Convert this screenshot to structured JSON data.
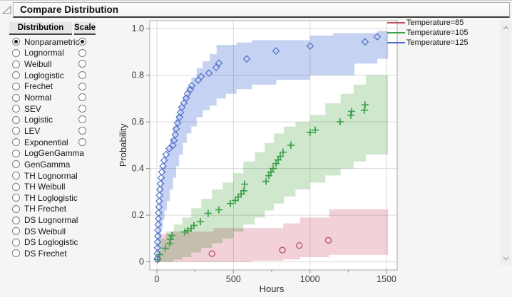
{
  "panel": {
    "title": "Compare Distribution"
  },
  "icons": {
    "disclosure": "open-triangle",
    "scroll_up": "chevron-up",
    "scroll_down": "chevron-down"
  },
  "distribution_table": {
    "headers": [
      "Distribution",
      "Scale"
    ],
    "rows": [
      {
        "label": "Nonparametric",
        "dist_selected": true,
        "has_scale": true,
        "scale_selected": true
      },
      {
        "label": "Lognormal",
        "dist_selected": false,
        "has_scale": true,
        "scale_selected": false
      },
      {
        "label": "Weibull",
        "dist_selected": false,
        "has_scale": true,
        "scale_selected": false
      },
      {
        "label": "Loglogistic",
        "dist_selected": false,
        "has_scale": true,
        "scale_selected": false
      },
      {
        "label": "Frechet",
        "dist_selected": false,
        "has_scale": true,
        "scale_selected": false
      },
      {
        "label": "Normal",
        "dist_selected": false,
        "has_scale": true,
        "scale_selected": false
      },
      {
        "label": "SEV",
        "dist_selected": false,
        "has_scale": true,
        "scale_selected": false
      },
      {
        "label": "Logistic",
        "dist_selected": false,
        "has_scale": true,
        "scale_selected": false
      },
      {
        "label": "LEV",
        "dist_selected": false,
        "has_scale": true,
        "scale_selected": false
      },
      {
        "label": "Exponential",
        "dist_selected": false,
        "has_scale": true,
        "scale_selected": false
      },
      {
        "label": "LogGenGamma",
        "dist_selected": false,
        "has_scale": false,
        "scale_selected": false
      },
      {
        "label": "GenGamma",
        "dist_selected": false,
        "has_scale": false,
        "scale_selected": false
      },
      {
        "label": "TH Lognormal",
        "dist_selected": false,
        "has_scale": false,
        "scale_selected": false
      },
      {
        "label": "TH Weibull",
        "dist_selected": false,
        "has_scale": false,
        "scale_selected": false
      },
      {
        "label": "TH Loglogistic",
        "dist_selected": false,
        "has_scale": false,
        "scale_selected": false
      },
      {
        "label": "TH Frechet",
        "dist_selected": false,
        "has_scale": false,
        "scale_selected": false
      },
      {
        "label": "DS Lognormal",
        "dist_selected": false,
        "has_scale": false,
        "scale_selected": false
      },
      {
        "label": "DS Weibull",
        "dist_selected": false,
        "has_scale": false,
        "scale_selected": false
      },
      {
        "label": "DS Loglogistic",
        "dist_selected": false,
        "has_scale": false,
        "scale_selected": false
      },
      {
        "label": "DS Frechet",
        "dist_selected": false,
        "has_scale": false,
        "scale_selected": false
      }
    ]
  },
  "legend": {
    "items": [
      {
        "label": "Temperature=85",
        "color": "#c05568"
      },
      {
        "label": "Temperature=105",
        "color": "#3da04b"
      },
      {
        "label": "Temperature=125",
        "color": "#4f6fc8"
      }
    ]
  },
  "chart_data": {
    "type": "scatter",
    "title": "",
    "xlabel": "Hours",
    "ylabel": "Probability",
    "xlim": [
      0,
      1570
    ],
    "ylim": [
      0,
      1.04
    ],
    "grid": true,
    "legend_position": "right-outside",
    "x_ticks": [
      {
        "value": 0,
        "label": "0"
      },
      {
        "value": 500,
        "label": "500"
      },
      {
        "value": 1000,
        "label": "1000"
      },
      {
        "value": 1500,
        "label": "1500"
      }
    ],
    "x_minor_ticks": [
      250,
      750,
      1250
    ],
    "y_ticks": [
      {
        "value": 1.0,
        "label": "1.0"
      },
      {
        "value": 0.8,
        "label": "0.8"
      },
      {
        "value": 0.6,
        "label": "0.6"
      },
      {
        "value": 0.4,
        "label": "0.4"
      },
      {
        "value": 0.2,
        "label": "0.2"
      },
      {
        "value": 0,
        "label": "0"
      }
    ],
    "series": [
      {
        "name": "Temperature=85",
        "marker": "circle",
        "color": "#c05568",
        "band_color": "#f2d2d8",
        "points": [
          [
            5,
            0.012
          ],
          [
            360,
            0.035
          ],
          [
            820,
            0.05
          ],
          [
            930,
            0.07
          ],
          [
            1120,
            0.092
          ]
        ],
        "band": [
          [
            25,
            0,
            0.12
          ],
          [
            100,
            0,
            0.13
          ],
          [
            370,
            0,
            0.145
          ],
          [
            620,
            0.005,
            0.145
          ],
          [
            825,
            0.01,
            0.165
          ],
          [
            935,
            0.02,
            0.19
          ],
          [
            1125,
            0.03,
            0.225
          ],
          [
            1510,
            0.04,
            0.225
          ]
        ]
      },
      {
        "name": "Temperature=105",
        "marker": "plus",
        "color": "#3da04b",
        "band_color": "#cfe8cd",
        "points": [
          [
            5,
            0.01
          ],
          [
            19,
            0.031
          ],
          [
            56,
            0.058
          ],
          [
            84,
            0.079
          ],
          [
            88,
            0.096
          ],
          [
            98,
            0.113
          ],
          [
            182,
            0.128
          ],
          [
            200,
            0.134
          ],
          [
            224,
            0.143
          ],
          [
            242,
            0.156
          ],
          [
            284,
            0.172
          ],
          [
            335,
            0.208
          ],
          [
            405,
            0.223
          ],
          [
            480,
            0.25
          ],
          [
            512,
            0.263
          ],
          [
            531,
            0.278
          ],
          [
            550,
            0.29
          ],
          [
            568,
            0.305
          ],
          [
            573,
            0.333
          ],
          [
            713,
            0.345
          ],
          [
            731,
            0.369
          ],
          [
            745,
            0.385
          ],
          [
            759,
            0.4
          ],
          [
            778,
            0.421
          ],
          [
            792,
            0.437
          ],
          [
            806,
            0.452
          ],
          [
            824,
            0.47
          ],
          [
            875,
            0.5
          ],
          [
            1001,
            0.555
          ],
          [
            1034,
            0.565
          ],
          [
            1197,
            0.6
          ],
          [
            1267,
            0.628
          ],
          [
            1272,
            0.645
          ],
          [
            1355,
            0.65
          ],
          [
            1360,
            0.673
          ]
        ],
        "band": [
          [
            15,
            0,
            0.1
          ],
          [
            60,
            0,
            0.13
          ],
          [
            110,
            0.01,
            0.16
          ],
          [
            165,
            0.02,
            0.19
          ],
          [
            225,
            0.04,
            0.23
          ],
          [
            290,
            0.06,
            0.27
          ],
          [
            360,
            0.08,
            0.31
          ],
          [
            430,
            0.1,
            0.34
          ],
          [
            500,
            0.13,
            0.38
          ],
          [
            565,
            0.16,
            0.43
          ],
          [
            640,
            0.19,
            0.47
          ],
          [
            705,
            0.22,
            0.51
          ],
          [
            765,
            0.25,
            0.55
          ],
          [
            830,
            0.28,
            0.58
          ],
          [
            905,
            0.31,
            0.6
          ],
          [
            1000,
            0.34,
            0.63
          ],
          [
            1100,
            0.37,
            0.68
          ],
          [
            1200,
            0.4,
            0.72
          ],
          [
            1285,
            0.43,
            0.76
          ],
          [
            1365,
            0.46,
            0.8
          ],
          [
            1510,
            0.46,
            0.8
          ]
        ]
      },
      {
        "name": "Temperature=125",
        "marker": "diamond",
        "color": "#4f6fc8",
        "band_color": "#c6d2f2",
        "points": [
          [
            2,
            0.012
          ],
          [
            3,
            0.035
          ],
          [
            4,
            0.06
          ],
          [
            5,
            0.085
          ],
          [
            6,
            0.11
          ],
          [
            7,
            0.135
          ],
          [
            8,
            0.16
          ],
          [
            10,
            0.185
          ],
          [
            12,
            0.21
          ],
          [
            14,
            0.235
          ],
          [
            16,
            0.26
          ],
          [
            18,
            0.285
          ],
          [
            20,
            0.31
          ],
          [
            24,
            0.335
          ],
          [
            28,
            0.36
          ],
          [
            33,
            0.385
          ],
          [
            40,
            0.41
          ],
          [
            48,
            0.435
          ],
          [
            60,
            0.46
          ],
          [
            80,
            0.485
          ],
          [
            105,
            0.5
          ],
          [
            112,
            0.52
          ],
          [
            120,
            0.545
          ],
          [
            126,
            0.57
          ],
          [
            135,
            0.595
          ],
          [
            148,
            0.62
          ],
          [
            154,
            0.64
          ],
          [
            163,
            0.662
          ],
          [
            177,
            0.681
          ],
          [
            191,
            0.702
          ],
          [
            200,
            0.721
          ],
          [
            219,
            0.739
          ],
          [
            228,
            0.755
          ],
          [
            270,
            0.779
          ],
          [
            289,
            0.794
          ],
          [
            340,
            0.809
          ],
          [
            387,
            0.833
          ],
          [
            405,
            0.852
          ],
          [
            587,
            0.87
          ],
          [
            778,
            0.904
          ],
          [
            1001,
            0.925
          ],
          [
            1360,
            0.943
          ],
          [
            1439,
            0.965
          ]
        ],
        "band": [
          [
            0,
            0,
            0.08
          ],
          [
            5,
            0,
            0.14
          ],
          [
            10,
            0.02,
            0.2
          ],
          [
            15,
            0.06,
            0.26
          ],
          [
            20,
            0.1,
            0.31
          ],
          [
            28,
            0.14,
            0.36
          ],
          [
            38,
            0.18,
            0.41
          ],
          [
            50,
            0.22,
            0.45
          ],
          [
            65,
            0.26,
            0.49
          ],
          [
            85,
            0.31,
            0.53
          ],
          [
            105,
            0.36,
            0.58
          ],
          [
            125,
            0.41,
            0.63
          ],
          [
            145,
            0.46,
            0.67
          ],
          [
            170,
            0.51,
            0.71
          ],
          [
            195,
            0.55,
            0.75
          ],
          [
            225,
            0.58,
            0.79
          ],
          [
            260,
            0.62,
            0.83
          ],
          [
            300,
            0.65,
            0.86
          ],
          [
            345,
            0.67,
            0.89
          ],
          [
            390,
            0.7,
            0.93
          ],
          [
            450,
            0.72,
            0.93
          ],
          [
            520,
            0.74,
            0.94
          ],
          [
            620,
            0.76,
            0.95
          ],
          [
            780,
            0.78,
            0.95
          ],
          [
            1000,
            0.8,
            0.97
          ],
          [
            1150,
            0.8,
            0.98
          ],
          [
            1290,
            0.85,
            0.98
          ],
          [
            1440,
            0.87,
            0.99
          ],
          [
            1510,
            0.87,
            0.99
          ]
        ]
      }
    ]
  }
}
